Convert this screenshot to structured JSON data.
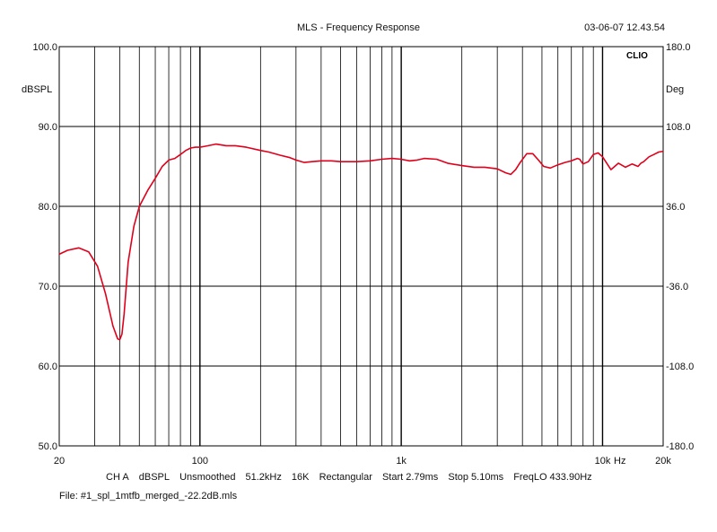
{
  "header": {
    "title": "MLS - Frequency Response",
    "timestamp": "03-06-07 12.43.54",
    "logo": "CLIO"
  },
  "footer": {
    "items": [
      "CH A",
      "dBSPL",
      "Unsmoothed",
      "51.2kHz",
      "16K",
      "Rectangular",
      "Start 2.79ms",
      "Stop 5.10ms",
      "FreqLO 433.90Hz"
    ],
    "file": "File: #1_spl_1mtfb_merged_-22.2dB.mls"
  },
  "colors": {
    "trace": "#e0001b",
    "grid": "#000000",
    "background": "#ffffff"
  },
  "chart_data": {
    "type": "line",
    "xscale": "log",
    "xlim": [
      20,
      20000
    ],
    "ylim": [
      50,
      100
    ],
    "y2lim": [
      -180,
      180
    ],
    "ylabel": "dBSPL",
    "y2label": "Deg",
    "xunit": "Hz",
    "grid": true,
    "x_ticks": [
      {
        "value": 20,
        "label": "20"
      },
      {
        "value": 100,
        "label": "100"
      },
      {
        "value": 1000,
        "label": "1k"
      },
      {
        "value": 10000,
        "label": "10k"
      },
      {
        "value": 20000,
        "label": "20k"
      }
    ],
    "y_ticks": [
      "100.0",
      "90.0",
      "80.0",
      "70.0",
      "60.0",
      "50.0"
    ],
    "y_tick_values": [
      100,
      90,
      80,
      70,
      60,
      50
    ],
    "y2_ticks": [
      "180.0",
      "108.0",
      "36.0",
      "-36.0",
      "-108.0",
      "-180.0"
    ],
    "series": [
      {
        "x": [
          20,
          22,
          25,
          28,
          31,
          34,
          37,
          39,
          40,
          41,
          42,
          44,
          47,
          50,
          55,
          60,
          65,
          70,
          75,
          80,
          85,
          90,
          95,
          100,
          110,
          120,
          135,
          150,
          170,
          200,
          220,
          250,
          280,
          300,
          330,
          360,
          400,
          450,
          500,
          600,
          700,
          800,
          900,
          1000,
          1100,
          1200,
          1300,
          1500,
          1700,
          2000,
          2300,
          2600,
          3000,
          3300,
          3500,
          3700,
          3900,
          4200,
          4500,
          4800,
          5100,
          5500,
          6000,
          6500,
          7000,
          7500,
          7700,
          8000,
          8500,
          9000,
          9500,
          10000,
          11000,
          12000,
          13000,
          14000,
          15000,
          15500,
          16000,
          17000,
          18000,
          19000,
          20000
        ],
        "y": [
          74.0,
          74.5,
          74.8,
          74.3,
          72.5,
          69.0,
          65.0,
          63.4,
          63.3,
          64.0,
          66.5,
          73.0,
          77.5,
          80.0,
          82.0,
          83.5,
          85.0,
          85.8,
          86.0,
          86.5,
          87.0,
          87.3,
          87.4,
          87.4,
          87.6,
          87.8,
          87.6,
          87.6,
          87.4,
          87.0,
          86.8,
          86.4,
          86.1,
          85.8,
          85.5,
          85.6,
          85.7,
          85.7,
          85.6,
          85.6,
          85.7,
          85.9,
          86.0,
          85.9,
          85.7,
          85.8,
          86.0,
          85.9,
          85.4,
          85.1,
          84.9,
          84.9,
          84.7,
          84.2,
          84.0,
          84.6,
          85.5,
          86.6,
          86.6,
          85.8,
          85.0,
          84.8,
          85.2,
          85.5,
          85.7,
          86.0,
          85.9,
          85.3,
          85.6,
          86.5,
          86.7,
          86.2,
          84.6,
          85.4,
          84.9,
          85.3,
          85.0,
          85.4,
          85.6,
          86.2,
          86.5,
          86.8,
          86.9
        ]
      }
    ]
  }
}
